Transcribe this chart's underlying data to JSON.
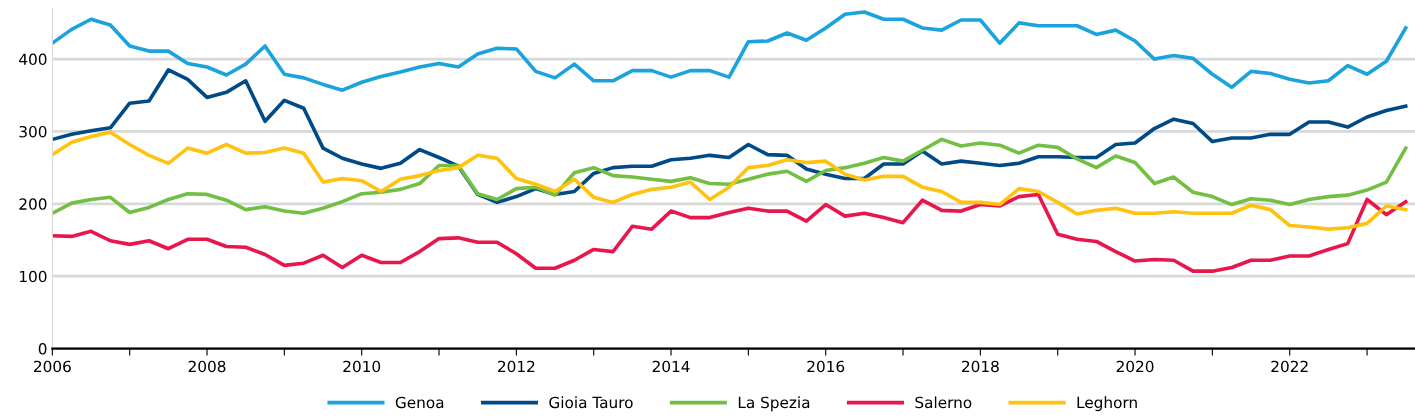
{
  "chart_data": {
    "type": "line",
    "x": [
      2006,
      2006.25,
      2006.5,
      2006.75,
      2007,
      2007.25,
      2007.5,
      2007.75,
      2008,
      2008.25,
      2008.5,
      2008.75,
      2009,
      2009.25,
      2009.5,
      2009.75,
      2010,
      2010.25,
      2010.5,
      2010.75,
      2011,
      2011.25,
      2011.5,
      2011.75,
      2012,
      2012.25,
      2012.5,
      2012.75,
      2013,
      2013.25,
      2013.5,
      2013.75,
      2014,
      2014.25,
      2014.5,
      2014.75,
      2015,
      2015.25,
      2015.5,
      2015.75,
      2016,
      2016.25,
      2016.5,
      2016.75,
      2017,
      2017.25,
      2017.5,
      2017.75,
      2018,
      2018.25,
      2018.5,
      2018.75,
      2019,
      2019.25,
      2019.5,
      2019.75,
      2020,
      2020.25,
      2020.5,
      2020.75,
      2021,
      2021.25,
      2021.5,
      2021.75,
      2022,
      2022.25,
      2022.5,
      2022.75,
      2023,
      2023.25,
      2023.5
    ],
    "series": [
      {
        "name": "Genoa",
        "color": "#1aa3dc",
        "values": [
          422,
          441,
          455,
          447,
          418,
          411,
          411,
          394,
          389,
          378,
          393,
          418,
          379,
          374,
          365,
          357,
          368,
          376,
          382,
          389,
          394,
          389,
          407,
          415,
          414,
          383,
          374,
          393,
          370,
          370,
          384,
          384,
          375,
          384,
          384,
          375,
          424,
          425,
          436,
          426,
          443,
          462,
          465,
          455,
          455,
          443,
          440,
          454,
          454,
          422,
          450,
          446,
          446,
          446,
          434,
          440,
          425,
          400,
          405,
          401,
          379,
          361,
          383,
          380,
          372,
          367,
          370,
          391,
          379,
          397,
          443
        ]
      },
      {
        "name": "Gioia Tauro",
        "color": "#004a87",
        "values": [
          289,
          296,
          301,
          305,
          339,
          342,
          385,
          372,
          347,
          354,
          370,
          314,
          343,
          332,
          277,
          263,
          255,
          249,
          256,
          275,
          264,
          252,
          213,
          202,
          210,
          221,
          213,
          217,
          242,
          250,
          252,
          252,
          261,
          263,
          267,
          264,
          282,
          268,
          267,
          248,
          241,
          235,
          235,
          255,
          255,
          273,
          255,
          259,
          256,
          253,
          256,
          265,
          265,
          264,
          264,
          282,
          284,
          304,
          317,
          311,
          286,
          291,
          291,
          296,
          296,
          313,
          313,
          306,
          320,
          329,
          335
        ]
      },
      {
        "name": "La Spezia",
        "color": "#72bf44",
        "values": [
          187,
          201,
          206,
          209,
          188,
          195,
          206,
          214,
          213,
          205,
          192,
          196,
          190,
          187,
          194,
          203,
          214,
          216,
          220,
          228,
          253,
          253,
          214,
          206,
          221,
          223,
          212,
          243,
          250,
          239,
          237,
          234,
          231,
          236,
          228,
          227,
          234,
          241,
          245,
          231,
          246,
          250,
          256,
          264,
          259,
          274,
          289,
          280,
          284,
          281,
          270,
          281,
          278,
          262,
          250,
          266,
          257,
          228,
          237,
          216,
          210,
          199,
          207,
          205,
          199,
          206,
          210,
          212,
          219,
          230,
          277
        ]
      },
      {
        "name": "Salerno",
        "color": "#e8174b",
        "values": [
          156,
          155,
          162,
          149,
          144,
          149,
          138,
          151,
          151,
          141,
          140,
          130,
          115,
          118,
          129,
          112,
          129,
          119,
          119,
          134,
          152,
          153,
          147,
          147,
          131,
          111,
          111,
          122,
          137,
          134,
          169,
          165,
          190,
          181,
          181,
          188,
          194,
          190,
          190,
          176,
          199,
          183,
          187,
          181,
          174,
          205,
          191,
          190,
          199,
          197,
          210,
          213,
          158,
          151,
          148,
          134,
          121,
          123,
          122,
          107,
          107,
          112,
          122,
          122,
          128,
          128,
          137,
          145,
          206,
          185,
          203
        ]
      },
      {
        "name": "Leghorn",
        "color": "#ffc20e",
        "values": [
          268,
          285,
          293,
          299,
          282,
          267,
          256,
          277,
          270,
          282,
          270,
          271,
          277,
          270,
          230,
          235,
          232,
          217,
          234,
          239,
          246,
          250,
          267,
          263,
          235,
          227,
          217,
          234,
          209,
          202,
          213,
          220,
          223,
          230,
          206,
          223,
          250,
          253,
          261,
          257,
          259,
          241,
          233,
          238,
          238,
          223,
          217,
          202,
          202,
          199,
          221,
          217,
          202,
          186,
          191,
          194,
          187,
          187,
          189,
          187,
          187,
          187,
          198,
          192,
          170,
          168,
          165,
          167,
          173,
          197,
          192
        ]
      }
    ],
    "xlim": [
      2006,
      2023.62
    ],
    "xticks": [
      2006,
      {
        "value": 2007,
        "label": null
      },
      2008,
      {
        "value": 2009,
        "label": null
      },
      2010,
      {
        "value": 2011,
        "label": null
      },
      2012,
      {
        "value": 2013,
        "label": null
      },
      2014,
      {
        "value": 2015,
        "label": null
      },
      2016,
      {
        "value": 2017,
        "label": null
      },
      2018,
      {
        "value": 2019,
        "label": null
      },
      2020,
      {
        "value": 2021,
        "label": null
      },
      2022,
      {
        "value": 2023,
        "label": null
      }
    ],
    "ylim": [
      0,
      470
    ],
    "yticks": [
      0,
      100,
      200,
      300,
      400
    ],
    "grid": "y",
    "legend": "bottom",
    "marker": "none",
    "line_style": "solid"
  }
}
